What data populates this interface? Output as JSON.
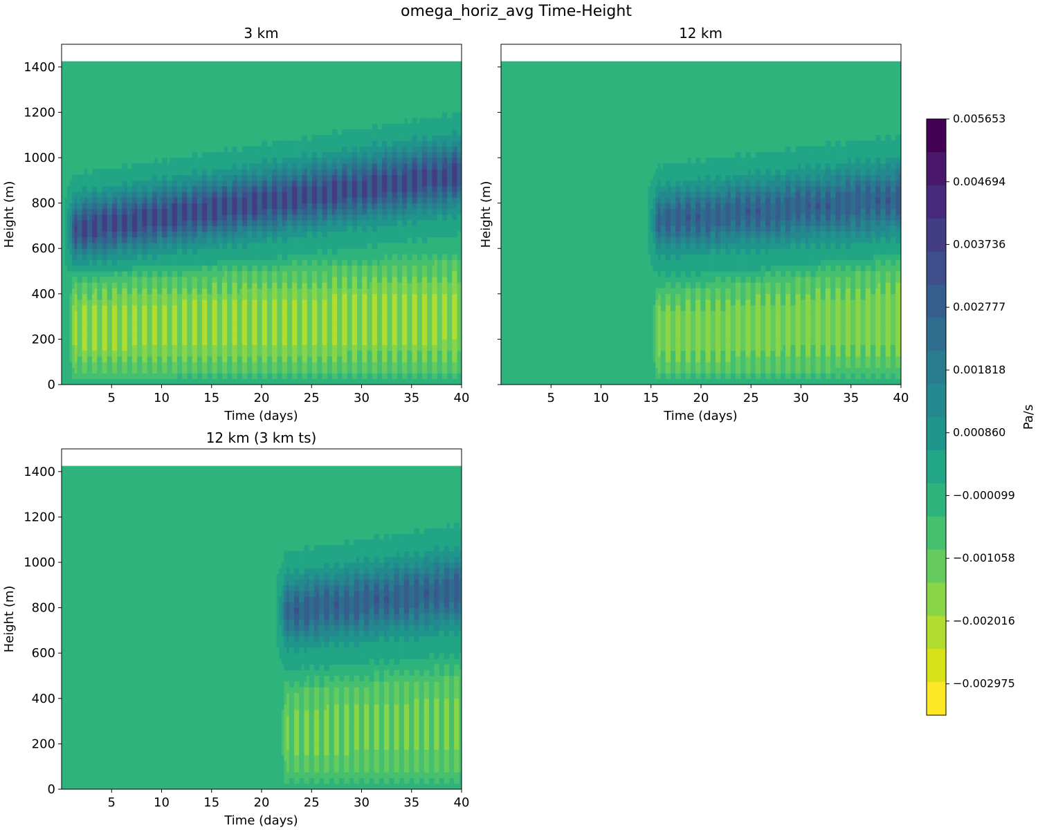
{
  "figure": {
    "title": "omega_horiz_avg Time-Height"
  },
  "chart_data": [
    {
      "type": "heatmap",
      "title": "3 km",
      "xlabel": "Time (days)",
      "ylabel": "Height (m)",
      "xlim": [
        0,
        40
      ],
      "ylim": [
        0,
        1500
      ],
      "xticks": [
        5,
        10,
        15,
        20,
        25,
        30,
        35,
        40
      ],
      "yticks": [
        0,
        200,
        400,
        600,
        800,
        1000,
        1200,
        1400
      ],
      "data_top": 1425,
      "onset_day": 0.3,
      "band_center": [
        680,
        930
      ],
      "band_halfwidth": [
        125,
        140
      ],
      "band_peak": 0.0042,
      "lower_peak": -0.0024,
      "lower_top": [
        500,
        600
      ],
      "cycle_days": 1,
      "description": "Diurnally oscillating omega: positive (subsidence) layer ~600-1000 m, negative layer below ~550 m from the start"
    },
    {
      "type": "heatmap",
      "title": "12 km",
      "xlabel": "Time (days)",
      "ylabel": "Height (m)",
      "xlim": [
        0,
        40
      ],
      "ylim": [
        0,
        1500
      ],
      "xticks": [
        5,
        10,
        15,
        20,
        25,
        30,
        35,
        40
      ],
      "yticks": [
        0,
        200,
        400,
        600,
        800,
        1000,
        1200,
        1400
      ],
      "data_top": 1425,
      "onset_day": 14.7,
      "band_center": [
        720,
        820
      ],
      "band_halfwidth": [
        130,
        150
      ],
      "band_peak": 0.0033,
      "lower_peak": -0.0021,
      "lower_top": [
        450,
        580
      ],
      "cycle_days": 1,
      "description": "Near-zero omega until ~day 15, then oscillating positive layer ~550-1000 m and negative layer below ~500 m"
    },
    {
      "type": "heatmap",
      "title": "12 km (3 km ts)",
      "xlabel": "Time (days)",
      "ylabel": "Height (m)",
      "xlim": [
        0,
        40
      ],
      "ylim": [
        0,
        1500
      ],
      "xticks": [
        5,
        10,
        15,
        20,
        25,
        30,
        35,
        40
      ],
      "yticks": [
        0,
        200,
        400,
        600,
        800,
        1000,
        1200,
        1400
      ],
      "data_top": 1425,
      "onset_day": 21.5,
      "band_center": [
        780,
        880
      ],
      "band_halfwidth": [
        140,
        155
      ],
      "band_peak": 0.0033,
      "lower_peak": -0.0018,
      "lower_top": [
        500,
        580
      ],
      "cycle_days": 1,
      "description": "Near-zero omega until ~day 21.5, then oscillating positive layer ~600-1100 m and negative layer below ~550 m"
    }
  ],
  "colorbar": {
    "label": "Pa/s",
    "min": -0.003454,
    "max": 0.005653,
    "levels": 19,
    "tick_values": [
      0.005653,
      0.004694,
      0.003736,
      0.002777,
      0.001818,
      0.00086,
      -9.9e-05,
      -0.001058,
      -0.002016,
      -0.002975
    ],
    "tick_labels": [
      "0.005653",
      "0.004694",
      "0.003736",
      "0.002777",
      "0.001818",
      "0.000860",
      "−0.000099",
      "−0.001058",
      "−0.002016",
      "−0.002975"
    ],
    "colors": [
      "#440154",
      "#481769",
      "#472a7a",
      "#433d84",
      "#3d4e8a",
      "#355e8d",
      "#2e6d8e",
      "#297b8e",
      "#23898e",
      "#1f958b",
      "#21a585",
      "#2eb37c",
      "#46c06f",
      "#65cb5e",
      "#89d548",
      "#b0dd2f",
      "#d8e219",
      "#fde725"
    ]
  }
}
